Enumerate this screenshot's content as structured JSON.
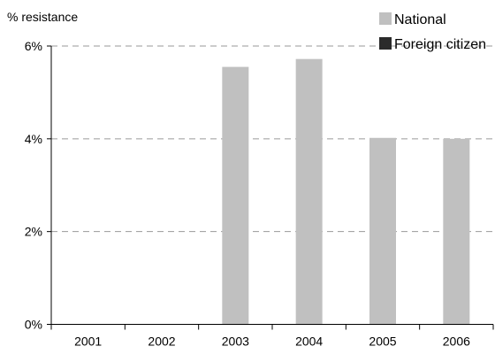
{
  "chart_data": {
    "type": "bar",
    "ylabel": "% resistance",
    "categories": [
      "2001",
      "2002",
      "2003",
      "2004",
      "2005",
      "2006"
    ],
    "series": [
      {
        "name": "National",
        "color": "#c0c0c0",
        "values": [
          null,
          null,
          5.55,
          5.72,
          4.02,
          4.0
        ]
      },
      {
        "name": "Foreign citizen",
        "color": "#2b2b2b",
        "values": [
          null,
          null,
          null,
          null,
          null,
          null
        ]
      }
    ],
    "ylim": [
      0,
      6
    ],
    "yticks": [
      0,
      2,
      4,
      6
    ],
    "ytick_labels": [
      "0%",
      "2%",
      "4%",
      "6%"
    ],
    "grid": true,
    "legend_position": "top-right"
  }
}
